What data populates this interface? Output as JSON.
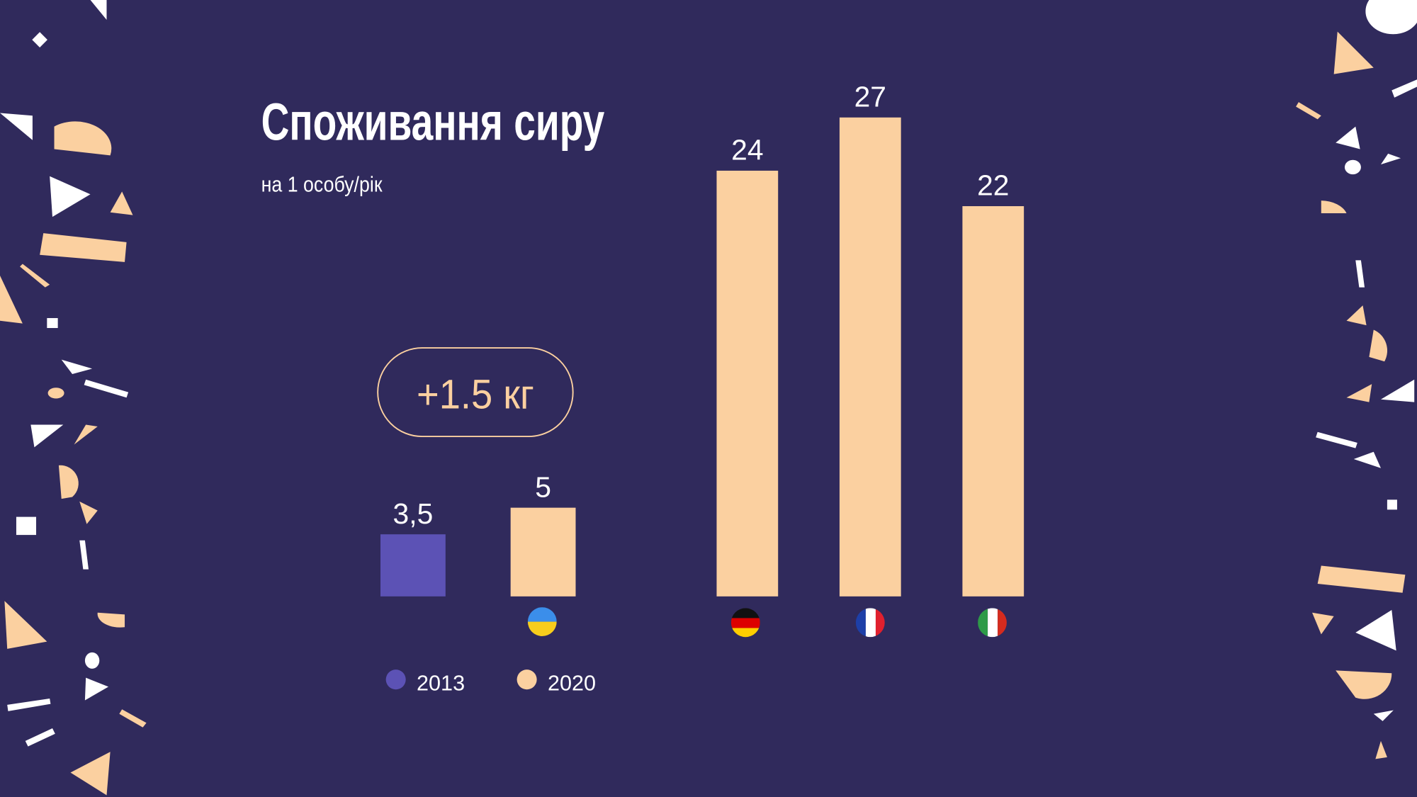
{
  "chart_data": {
    "type": "bar",
    "title": "Споживання сиру",
    "subtitle": "на 1 особу/рік",
    "annotation": "+1.5 кг",
    "categories": [
      null,
      null,
      null,
      null
    ],
    "series": [
      {
        "name": "2013",
        "color": "#5c52b5",
        "values": [
          3.5,
          null,
          null,
          null
        ],
        "value_labels": [
          "3,5",
          null,
          null,
          null
        ]
      },
      {
        "name": "2020",
        "color": "#fbd0a0",
        "values": [
          5,
          24,
          27,
          22
        ]
      }
    ]
  }
}
